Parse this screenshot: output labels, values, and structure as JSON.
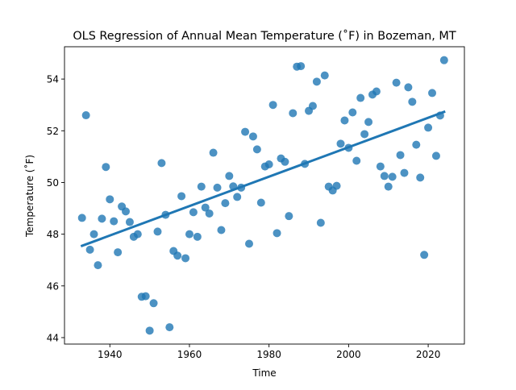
{
  "chart_data": {
    "type": "scatter",
    "title": "OLS Regression of Annual Mean Temperature (˚F) in Bozeman, MT",
    "xlabel": "Time",
    "ylabel": "Temperature (˚F)",
    "xlim": [
      1928.6,
      2029.1
    ],
    "ylim": [
      43.75,
      55.25
    ],
    "xticks": [
      1940,
      1960,
      1980,
      2000,
      2020
    ],
    "yticks": [
      44,
      46,
      48,
      50,
      52,
      54
    ],
    "grid": false,
    "legend": "none",
    "colors": {
      "points": "#1f77b4",
      "line": "#1f77b4"
    },
    "x": [
      1933,
      1934,
      1935,
      1936,
      1937,
      1938,
      1939,
      1940,
      1941,
      1942,
      1943,
      1944,
      1945,
      1946,
      1947,
      1948,
      1949,
      1950,
      1951,
      1952,
      1953,
      1954,
      1955,
      1956,
      1957,
      1958,
      1959,
      1960,
      1961,
      1962,
      1963,
      1964,
      1965,
      1966,
      1967,
      1968,
      1969,
      1970,
      1971,
      1972,
      1973,
      1974,
      1975,
      1976,
      1977,
      1978,
      1979,
      1980,
      1981,
      1982,
      1983,
      1984,
      1985,
      1986,
      1987,
      1988,
      1989,
      1990,
      1991,
      1992,
      1993,
      1994,
      1995,
      1996,
      1997,
      1998,
      1999,
      2000,
      2001,
      2002,
      2003,
      2004,
      2005,
      2006,
      2007,
      2008,
      2009,
      2010,
      2011,
      2012,
      2013,
      2014,
      2015,
      2016,
      2017,
      2018,
      2019,
      2020,
      2021,
      2022,
      2023,
      2024
    ],
    "y": [
      48.63,
      52.6,
      47.4,
      48.0,
      46.8,
      48.6,
      50.6,
      49.35,
      48.5,
      47.3,
      49.07,
      48.88,
      48.47,
      47.9,
      48.0,
      45.58,
      45.6,
      44.27,
      45.33,
      48.1,
      50.75,
      48.75,
      44.4,
      47.35,
      47.17,
      49.47,
      47.07,
      48.0,
      48.85,
      47.9,
      49.84,
      49.03,
      48.8,
      51.15,
      49.8,
      48.16,
      49.2,
      50.25,
      49.85,
      49.44,
      49.8,
      51.96,
      47.63,
      51.78,
      51.28,
      49.22,
      50.62,
      50.7,
      53.0,
      48.04,
      50.93,
      50.8,
      48.7,
      52.68,
      54.48,
      54.5,
      50.72,
      52.77,
      52.96,
      53.9,
      48.44,
      54.14,
      49.84,
      49.69,
      49.87,
      51.5,
      52.4,
      51.34,
      52.71,
      50.84,
      53.27,
      51.87,
      52.34,
      53.4,
      53.52,
      50.62,
      50.25,
      49.84,
      50.22,
      53.86,
      51.06,
      50.37,
      53.68,
      53.12,
      51.46,
      50.19,
      47.2,
      52.12,
      53.46,
      51.03,
      52.59,
      54.73
    ],
    "regression_line": {
      "x": [
        1933,
        2024
      ],
      "y": [
        47.55,
        52.73
      ]
    }
  }
}
